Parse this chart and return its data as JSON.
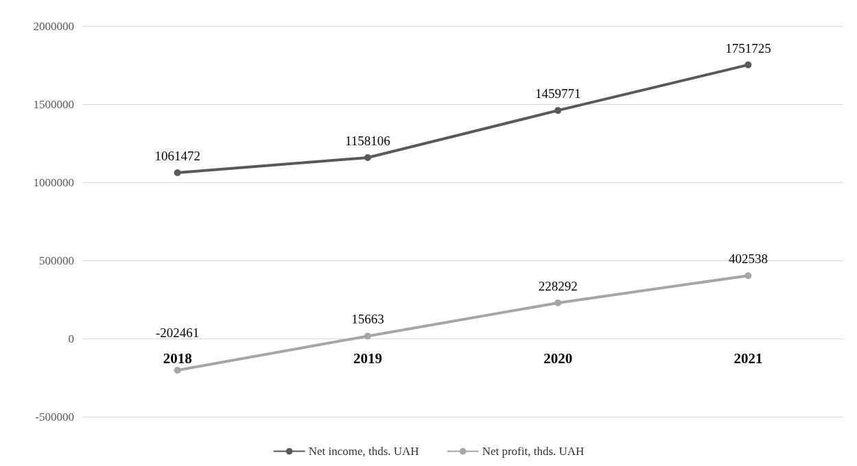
{
  "chart_data": {
    "type": "line",
    "categories": [
      "2018",
      "2019",
      "2020",
      "2021"
    ],
    "series": [
      {
        "name": "Net income, thds. UAH",
        "color": "#595959",
        "values": [
          1061472,
          1158106,
          1459771,
          1751725
        ]
      },
      {
        "name": "Net profit, thds. UAH",
        "color": "#a6a6a6",
        "values": [
          -202461,
          15663,
          228292,
          402538
        ]
      }
    ],
    "ylim": [
      -500000,
      2000000
    ],
    "yticks": [
      -500000,
      0,
      500000,
      1000000,
      1500000,
      2000000
    ],
    "grid": "y",
    "legend": "bottom",
    "data_labels": true,
    "marker": "circle",
    "line_style": "solid"
  }
}
